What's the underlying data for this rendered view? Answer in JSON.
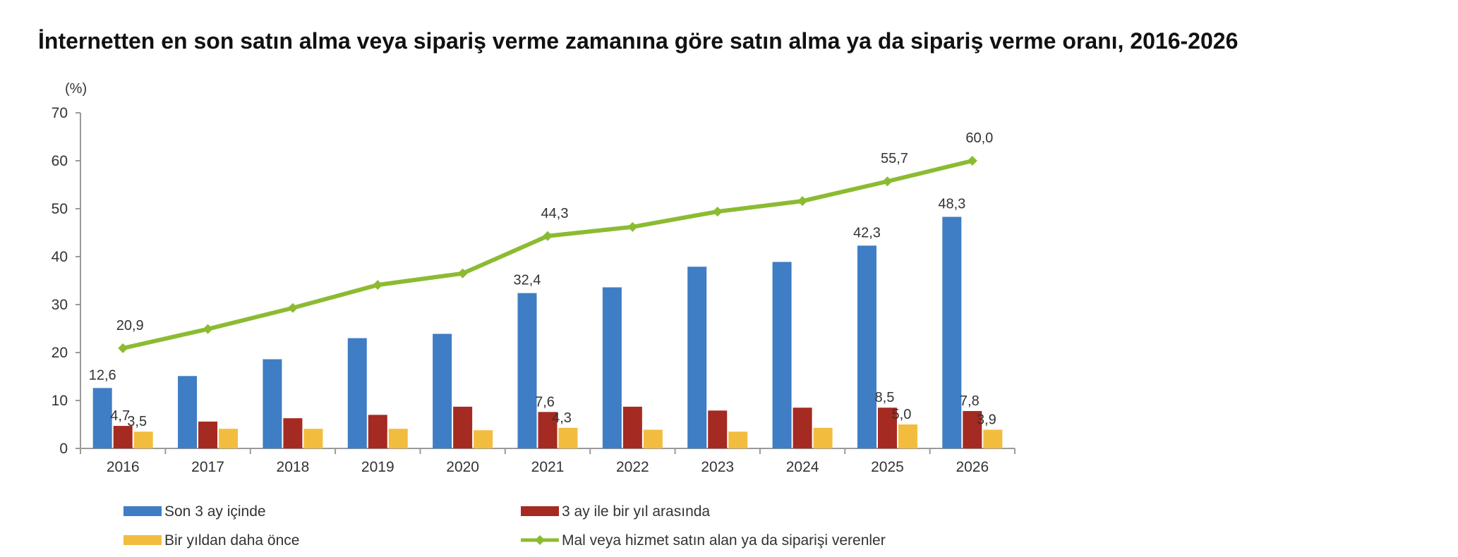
{
  "title": "İnternetten en son satın alma veya sipariş verme zamanına göre satın alma ya da sipariş verme oranı, 2016-2026",
  "chart_data": {
    "type": "bar",
    "unit_label": "(%)",
    "categories": [
      "2016",
      "2017",
      "2018",
      "2019",
      "2020",
      "2021",
      "2022",
      "2023",
      "2024",
      "2025",
      "2026"
    ],
    "ylim": [
      0,
      70
    ],
    "yticks": [
      0,
      10,
      20,
      30,
      40,
      50,
      60,
      70
    ],
    "grid": false,
    "legend_position": "bottom",
    "series": [
      {
        "name": "Son 3 ay içinde",
        "kind": "bar",
        "color": "#3f7dc4",
        "values": [
          12.6,
          15.1,
          18.6,
          23.0,
          23.9,
          32.4,
          33.6,
          37.9,
          38.9,
          42.3,
          48.3
        ],
        "labels": [
          "12,6",
          "",
          "",
          "",
          "",
          "32,4",
          "",
          "",
          "",
          "42,3",
          "48,3"
        ]
      },
      {
        "name": "3 ay ile bir yıl arasında",
        "kind": "bar",
        "color": "#a52a22",
        "values": [
          4.7,
          5.6,
          6.3,
          7.0,
          8.7,
          7.6,
          8.7,
          7.9,
          8.5,
          8.5,
          7.8
        ],
        "labels": [
          "4,7",
          "",
          "",
          "",
          "",
          "7,6",
          "",
          "",
          "",
          "8,5",
          "7,8"
        ]
      },
      {
        "name": "Bir yıldan daha önce",
        "kind": "bar",
        "color": "#f2bd3f",
        "values": [
          3.5,
          4.1,
          4.1,
          4.1,
          3.8,
          4.3,
          3.9,
          3.5,
          4.3,
          5.0,
          3.9
        ],
        "labels": [
          "3,5",
          "",
          "",
          "",
          "",
          "4,3",
          "",
          "",
          "",
          "5,0",
          "3,9"
        ]
      },
      {
        "name": "Mal veya hizmet satın alan ya da siparişi verenler",
        "kind": "line",
        "color": "#8cbb32",
        "values": [
          20.9,
          24.9,
          29.3,
          34.1,
          36.5,
          44.3,
          46.2,
          49.4,
          51.6,
          55.7,
          60.0
        ],
        "labels": [
          "20,9",
          "",
          "",
          "",
          "",
          "44,3",
          "",
          "",
          "",
          "55,7",
          "60,0"
        ]
      }
    ]
  }
}
